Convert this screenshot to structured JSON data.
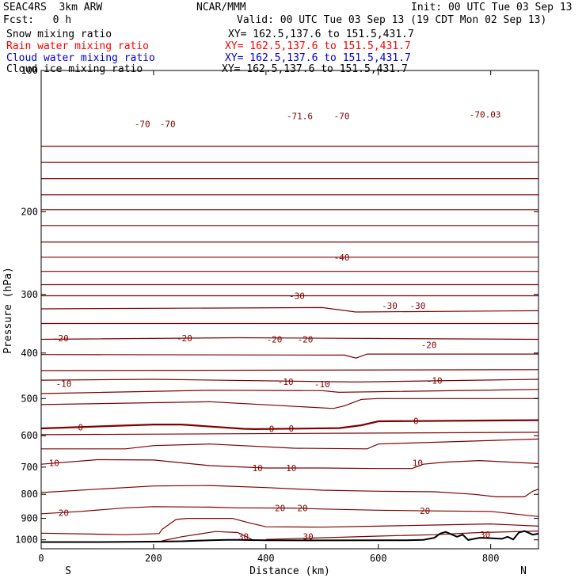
{
  "header": {
    "model": "SEAC4RS  3km ARW",
    "org": "NCAR/MMM",
    "init": "Init: 00 UTC Tue 03 Sep 13",
    "fcst": "Fcst:   0 h",
    "valid": "Valid: 00 UTC Tue 03 Sep 13 (19 CDT Mon 02 Sep 13)",
    "legend": [
      {
        "label": "Snow mixing ratio",
        "xy": "XY= 162.5,137.6 to 151.5,431.7",
        "color": "#000000"
      },
      {
        "label": "Rain water mixing ratio",
        "xy": "XY= 162.5,137.6 to 151.5,431.7",
        "color": "#ff0000"
      },
      {
        "label": "Cloud water mixing ratio",
        "xy": "XY= 162.5,137.6 to 151.5,431.7",
        "color": "#0000cc"
      },
      {
        "label": "Cloud ice mixing ratio",
        "xy": "XY= 162.5,137.6 to 151.5,431.7",
        "color": "#000000"
      }
    ]
  },
  "chart_data": {
    "type": "line",
    "xlabel": "Distance (km)",
    "ylabel": "Pressure (hPa)",
    "xlim": [
      0,
      885
    ],
    "ylim": [
      1045,
      100
    ],
    "y_scale": "log",
    "xticks": [
      0,
      200,
      400,
      600,
      800
    ],
    "yticks": [
      100,
      200,
      300,
      400,
      500,
      600,
      700,
      800,
      900,
      1000
    ],
    "x_end_labels": {
      "left": "S",
      "right": "N"
    },
    "contour_color": "#800000",
    "terrain_color": "#000000",
    "isotherms": [
      {
        "label": "-70",
        "pts": [
          [
            0,
            145
          ],
          [
            885,
            145
          ]
        ]
      },
      {
        "label": "",
        "pts": [
          [
            0,
            157
          ],
          [
            885,
            157
          ]
        ]
      },
      {
        "label": "",
        "pts": [
          [
            0,
            170
          ],
          [
            885,
            170
          ]
        ]
      },
      {
        "label": "",
        "pts": [
          [
            0,
            184
          ],
          [
            885,
            184
          ]
        ]
      },
      {
        "label": "",
        "pts": [
          [
            0,
            198
          ],
          [
            885,
            198
          ]
        ]
      },
      {
        "label": "",
        "pts": [
          [
            0,
            214
          ],
          [
            885,
            214
          ]
        ]
      },
      {
        "label": "",
        "pts": [
          [
            0,
            232
          ],
          [
            885,
            232
          ]
        ]
      },
      {
        "label": "-40",
        "pts": [
          [
            0,
            250
          ],
          [
            885,
            250
          ]
        ]
      },
      {
        "label": "",
        "pts": [
          [
            0,
            268
          ],
          [
            885,
            268
          ]
        ]
      },
      {
        "label": "",
        "pts": [
          [
            0,
            286
          ],
          [
            885,
            286
          ]
        ]
      },
      {
        "label": "-30",
        "pts": [
          [
            0,
            302
          ],
          [
            885,
            302
          ]
        ]
      },
      {
        "label": "",
        "pts": [
          [
            0,
            322
          ],
          [
            500,
            320
          ],
          [
            560,
            327
          ],
          [
            885,
            325
          ]
        ]
      },
      {
        "label": "",
        "pts": [
          [
            0,
            346
          ],
          [
            885,
            346
          ]
        ]
      },
      {
        "label": "-20",
        "pts": [
          [
            0,
            374
          ],
          [
            350,
            371
          ],
          [
            885,
            374
          ]
        ]
      },
      {
        "label": "",
        "pts": [
          [
            0,
            403
          ],
          [
            540,
            404
          ],
          [
            560,
            410
          ],
          [
            580,
            402
          ],
          [
            885,
            402
          ]
        ]
      },
      {
        "label": "",
        "pts": [
          [
            0,
            436
          ],
          [
            885,
            434
          ]
        ]
      },
      {
        "label": "-10",
        "pts": [
          [
            0,
            457
          ],
          [
            200,
            455
          ],
          [
            560,
            461
          ],
          [
            885,
            455
          ]
        ]
      },
      {
        "label": "",
        "pts": [
          [
            0,
            488
          ],
          [
            300,
            480
          ],
          [
            500,
            481
          ],
          [
            530,
            485
          ],
          [
            885,
            478
          ]
        ]
      },
      {
        "label": "",
        "pts": [
          [
            0,
            515
          ],
          [
            300,
            508
          ],
          [
            520,
            525
          ],
          [
            540,
            518
          ],
          [
            570,
            502
          ],
          [
            600,
            500
          ],
          [
            885,
            500
          ]
        ]
      },
      {
        "label": "0",
        "bold": true,
        "pts": [
          [
            0,
            579
          ],
          [
            200,
            568
          ],
          [
            250,
            568
          ],
          [
            360,
            580
          ],
          [
            380,
            581
          ],
          [
            530,
            578
          ],
          [
            570,
            570
          ],
          [
            600,
            559
          ],
          [
            885,
            556
          ]
        ]
      },
      {
        "label": "",
        "pts": [
          [
            0,
            597
          ],
          [
            885,
            590
          ]
        ]
      },
      {
        "label": "",
        "pts": [
          [
            0,
            640
          ],
          [
            150,
            640
          ],
          [
            200,
            630
          ],
          [
            300,
            625
          ],
          [
            450,
            638
          ],
          [
            580,
            640
          ],
          [
            600,
            625
          ],
          [
            885,
            610
          ]
        ]
      },
      {
        "label": "10",
        "pts": [
          [
            0,
            690
          ],
          [
            100,
            675
          ],
          [
            200,
            676
          ],
          [
            300,
            695
          ],
          [
            400,
            703
          ],
          [
            500,
            703
          ],
          [
            600,
            705
          ],
          [
            660,
            705
          ],
          [
            680,
            690
          ],
          [
            720,
            683
          ],
          [
            780,
            678
          ],
          [
            885,
            688
          ]
        ]
      },
      {
        "label": "",
        "pts": [
          [
            0,
            793
          ],
          [
            100,
            780
          ],
          [
            200,
            768
          ],
          [
            300,
            766
          ],
          [
            400,
            774
          ],
          [
            500,
            784
          ],
          [
            600,
            788
          ],
          [
            700,
            790
          ],
          [
            770,
            800
          ],
          [
            810,
            810
          ],
          [
            860,
            810
          ],
          [
            875,
            788
          ],
          [
            885,
            780
          ]
        ]
      },
      {
        "label": "20",
        "pts": [
          [
            0,
            880
          ],
          [
            70,
            870
          ],
          [
            150,
            855
          ],
          [
            200,
            850
          ],
          [
            300,
            852
          ],
          [
            350,
            855
          ],
          [
            450,
            856
          ],
          [
            500,
            860
          ],
          [
            600,
            865
          ],
          [
            700,
            868
          ],
          [
            800,
            870
          ],
          [
            885,
            892
          ]
        ]
      },
      {
        "label": "",
        "pts": [
          [
            0,
            968
          ],
          [
            150,
            975
          ],
          [
            210,
            970
          ],
          [
            215,
            950
          ],
          [
            240,
            905
          ],
          [
            260,
            900
          ],
          [
            340,
            900
          ],
          [
            370,
            920
          ],
          [
            400,
            938
          ],
          [
            500,
            940
          ],
          [
            600,
            935
          ],
          [
            700,
            930
          ],
          [
            800,
            925
          ],
          [
            885,
            935
          ]
        ]
      },
      {
        "label": "30",
        "pts": [
          [
            215,
            1005
          ],
          [
            250,
            985
          ],
          [
            310,
            960
          ],
          [
            350,
            965
          ],
          [
            380,
            1005
          ]
        ]
      },
      {
        "label": "",
        "pts": [
          [
            400,
            998
          ],
          [
            500,
            990
          ],
          [
            600,
            982
          ],
          [
            700,
            975
          ],
          [
            780,
            965
          ],
          [
            885,
            958
          ]
        ]
      }
    ],
    "terrain": [
      [
        0,
        1011
      ],
      [
        100,
        1011
      ],
      [
        200,
        1009
      ],
      [
        250,
        1007
      ],
      [
        300,
        1002
      ],
      [
        330,
        1000
      ],
      [
        350,
        1000
      ],
      [
        400,
        1002
      ],
      [
        500,
        1003
      ],
      [
        600,
        1002
      ],
      [
        650,
        1002
      ],
      [
        680,
        1000
      ],
      [
        700,
        990
      ],
      [
        710,
        970
      ],
      [
        720,
        962
      ],
      [
        740,
        985
      ],
      [
        750,
        975
      ],
      [
        760,
        1001
      ],
      [
        780,
        990
      ],
      [
        800,
        992
      ],
      [
        820,
        995
      ],
      [
        830,
        985
      ],
      [
        840,
        998
      ],
      [
        850,
        965
      ],
      [
        860,
        958
      ],
      [
        875,
        975
      ],
      [
        885,
        970
      ]
    ],
    "contour_labels": [
      {
        "text": "-70",
        "x": 180,
        "p": 130
      },
      {
        "text": "-70",
        "x": 225,
        "p": 130
      },
      {
        "text": "-71.6",
        "x": 460,
        "p": 125
      },
      {
        "text": "-70",
        "x": 535,
        "p": 125
      },
      {
        "text": "-70.03",
        "x": 790,
        "p": 124
      },
      {
        "text": "-40",
        "x": 535,
        "p": 250
      },
      {
        "text": "-30",
        "x": 455,
        "p": 302
      },
      {
        "text": "-30",
        "x": 620,
        "p": 317
      },
      {
        "text": "-30",
        "x": 670,
        "p": 317
      },
      {
        "text": "-20",
        "x": 35,
        "p": 372
      },
      {
        "text": "-20",
        "x": 255,
        "p": 372
      },
      {
        "text": "-20",
        "x": 415,
        "p": 374
      },
      {
        "text": "-20",
        "x": 470,
        "p": 374
      },
      {
        "text": "-20",
        "x": 690,
        "p": 384
      },
      {
        "text": "-10",
        "x": 40,
        "p": 465
      },
      {
        "text": "-10",
        "x": 435,
        "p": 460
      },
      {
        "text": "-10",
        "x": 500,
        "p": 466
      },
      {
        "text": "-10",
        "x": 700,
        "p": 458
      },
      {
        "text": "0",
        "x": 70,
        "p": 576
      },
      {
        "text": "0",
        "x": 410,
        "p": 580
      },
      {
        "text": "0",
        "x": 445,
        "p": 579
      },
      {
        "text": "0",
        "x": 667,
        "p": 558
      },
      {
        "text": "10",
        "x": 23,
        "p": 685
      },
      {
        "text": "10",
        "x": 385,
        "p": 703
      },
      {
        "text": "10",
        "x": 445,
        "p": 703
      },
      {
        "text": "10",
        "x": 670,
        "p": 685
      },
      {
        "text": "20",
        "x": 40,
        "p": 876
      },
      {
        "text": "20",
        "x": 425,
        "p": 856
      },
      {
        "text": "20",
        "x": 465,
        "p": 856
      },
      {
        "text": "20",
        "x": 683,
        "p": 868
      },
      {
        "text": "30",
        "x": 360,
        "p": 984
      },
      {
        "text": "30",
        "x": 475,
        "p": 984
      },
      {
        "text": "30",
        "x": 790,
        "p": 975
      }
    ]
  }
}
